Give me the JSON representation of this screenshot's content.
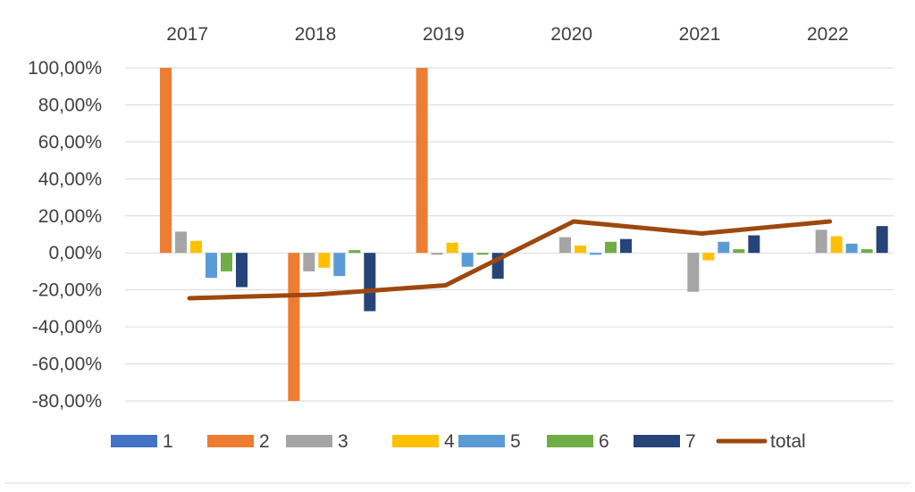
{
  "chart_data": {
    "type": "bar",
    "categories": [
      "2017",
      "2018",
      "2019",
      "2020",
      "2021",
      "2022"
    ],
    "ylim": [
      -80,
      100
    ],
    "yticks": [
      100,
      80,
      60,
      40,
      20,
      0,
      -20,
      -40,
      -60,
      -80
    ],
    "ytick_labels": [
      "100,00%",
      "80,00%",
      "60,00%",
      "40,00%",
      "20,00%",
      "0,00%",
      "-20,00%",
      "-40,00%",
      "-60,00%",
      "-80,00%"
    ],
    "grid": true,
    "legend_position": "bottom",
    "series": [
      {
        "name": "1",
        "type": "bar",
        "color": "#4472C4",
        "values": [
          0,
          0,
          0,
          0,
          0,
          0
        ]
      },
      {
        "name": "2",
        "type": "bar",
        "color": "#ED7D31",
        "values": [
          100,
          -80,
          100,
          0,
          0,
          0
        ]
      },
      {
        "name": "3",
        "type": "bar",
        "color": "#A5A5A5",
        "values": [
          11.5,
          -10,
          -1,
          8.5,
          -21,
          12.5
        ]
      },
      {
        "name": "4",
        "type": "bar",
        "color": "#FFC000",
        "values": [
          6.5,
          -8,
          5.5,
          4,
          -4,
          9
        ]
      },
      {
        "name": "5",
        "type": "bar",
        "color": "#5B9BD5",
        "values": [
          -13.5,
          -12.5,
          -7.5,
          -1,
          6,
          5
        ]
      },
      {
        "name": "6",
        "type": "bar",
        "color": "#70AD47",
        "values": [
          -10,
          1.5,
          -1,
          6,
          2,
          2
        ]
      },
      {
        "name": "7",
        "type": "bar",
        "color": "#264478",
        "values": [
          -18.5,
          -31.5,
          -14,
          7.5,
          9.5,
          14.5
        ]
      },
      {
        "name": "total",
        "type": "line",
        "color": "#9E480E",
        "values": [
          -24.5,
          -22.5,
          -17.5,
          17,
          10.5,
          17
        ]
      }
    ]
  }
}
